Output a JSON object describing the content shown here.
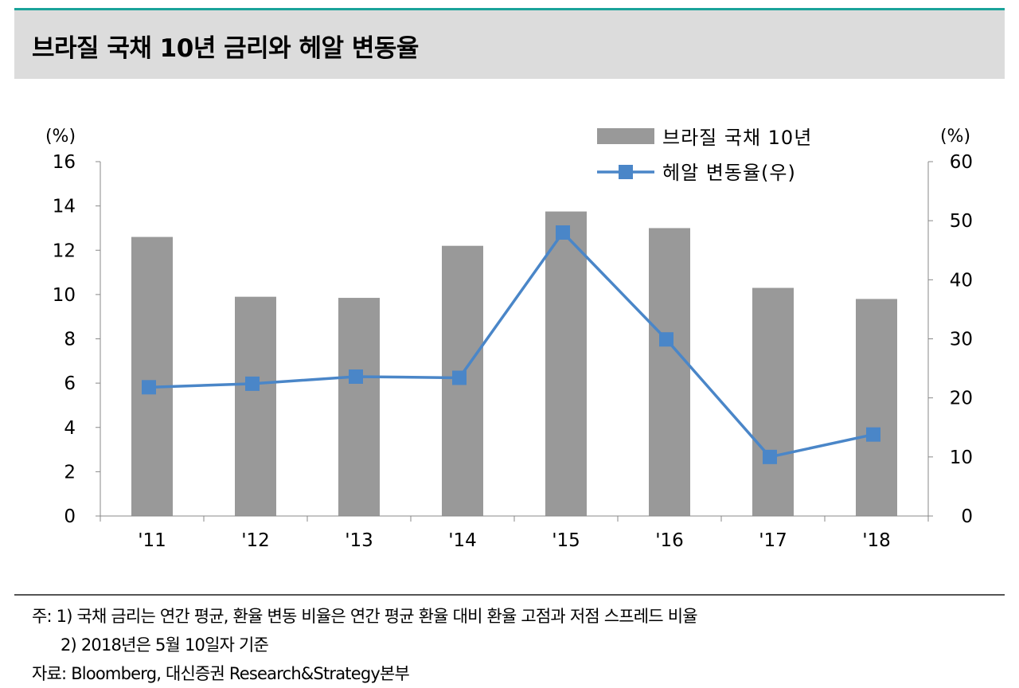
{
  "header": {
    "title": "브라질 국채 10년 금리와 헤알 변동율"
  },
  "chart_data": {
    "type": "bar+line",
    "categories": [
      "'11",
      "'12",
      "'13",
      "'14",
      "'15",
      "'16",
      "'17",
      "'18"
    ],
    "series": [
      {
        "name": "브라질 국채 10년",
        "type": "bar",
        "axis": "left",
        "values": [
          12.6,
          9.9,
          9.85,
          12.2,
          13.75,
          13.0,
          10.3,
          9.8
        ]
      },
      {
        "name": "헤알 변동율(우)",
        "type": "line",
        "axis": "right",
        "values": [
          21.8,
          22.4,
          23.6,
          23.4,
          48.0,
          29.9,
          10.0,
          13.8
        ]
      }
    ],
    "left_axis": {
      "unit": "(%)",
      "ylim": [
        0,
        16
      ],
      "ticks": [
        0,
        2,
        4,
        6,
        8,
        10,
        12,
        14,
        16
      ]
    },
    "right_axis": {
      "unit": "(%)",
      "ylim": [
        0,
        60
      ],
      "ticks": [
        0,
        10,
        20,
        30,
        40,
        50,
        60
      ]
    },
    "grid": false,
    "legend_position": "top-right",
    "colors": {
      "bar": "#999999",
      "line": "#4a86c8",
      "marker": "#4a86c8"
    }
  },
  "notes": {
    "line1": "주: 1) 국채 금리는 연간 평균, 환율 변동 비율은 연간 평균 환율 대비 환율 고점과 저점 스프레드 비율",
    "line2": "2) 2018년은 5월 10일자 기준",
    "source": "자료: Bloomberg, 대신증권 Research&Strategy본부"
  }
}
